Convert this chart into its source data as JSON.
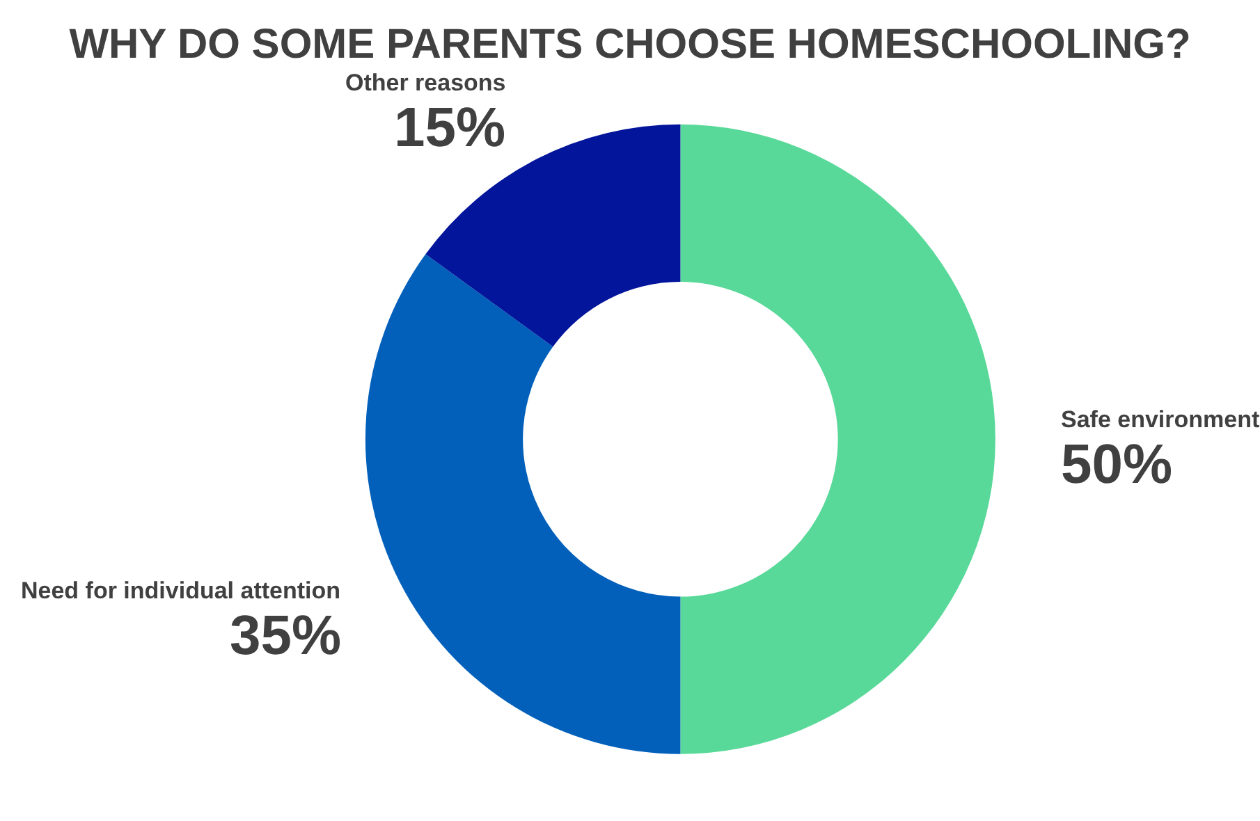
{
  "chart_data": {
    "type": "donut",
    "title": "WHY DO SOME PARENTS CHOOSE HOMESCHOOLING?",
    "categories": [
      "Safe environment",
      "Need for individual attention",
      "Other reasons"
    ],
    "values": [
      50,
      35,
      15
    ],
    "value_labels": [
      "50%",
      "35%",
      "15%"
    ],
    "colors": [
      "#59d999",
      "#0260bb",
      "#03159a"
    ],
    "legend": false
  }
}
